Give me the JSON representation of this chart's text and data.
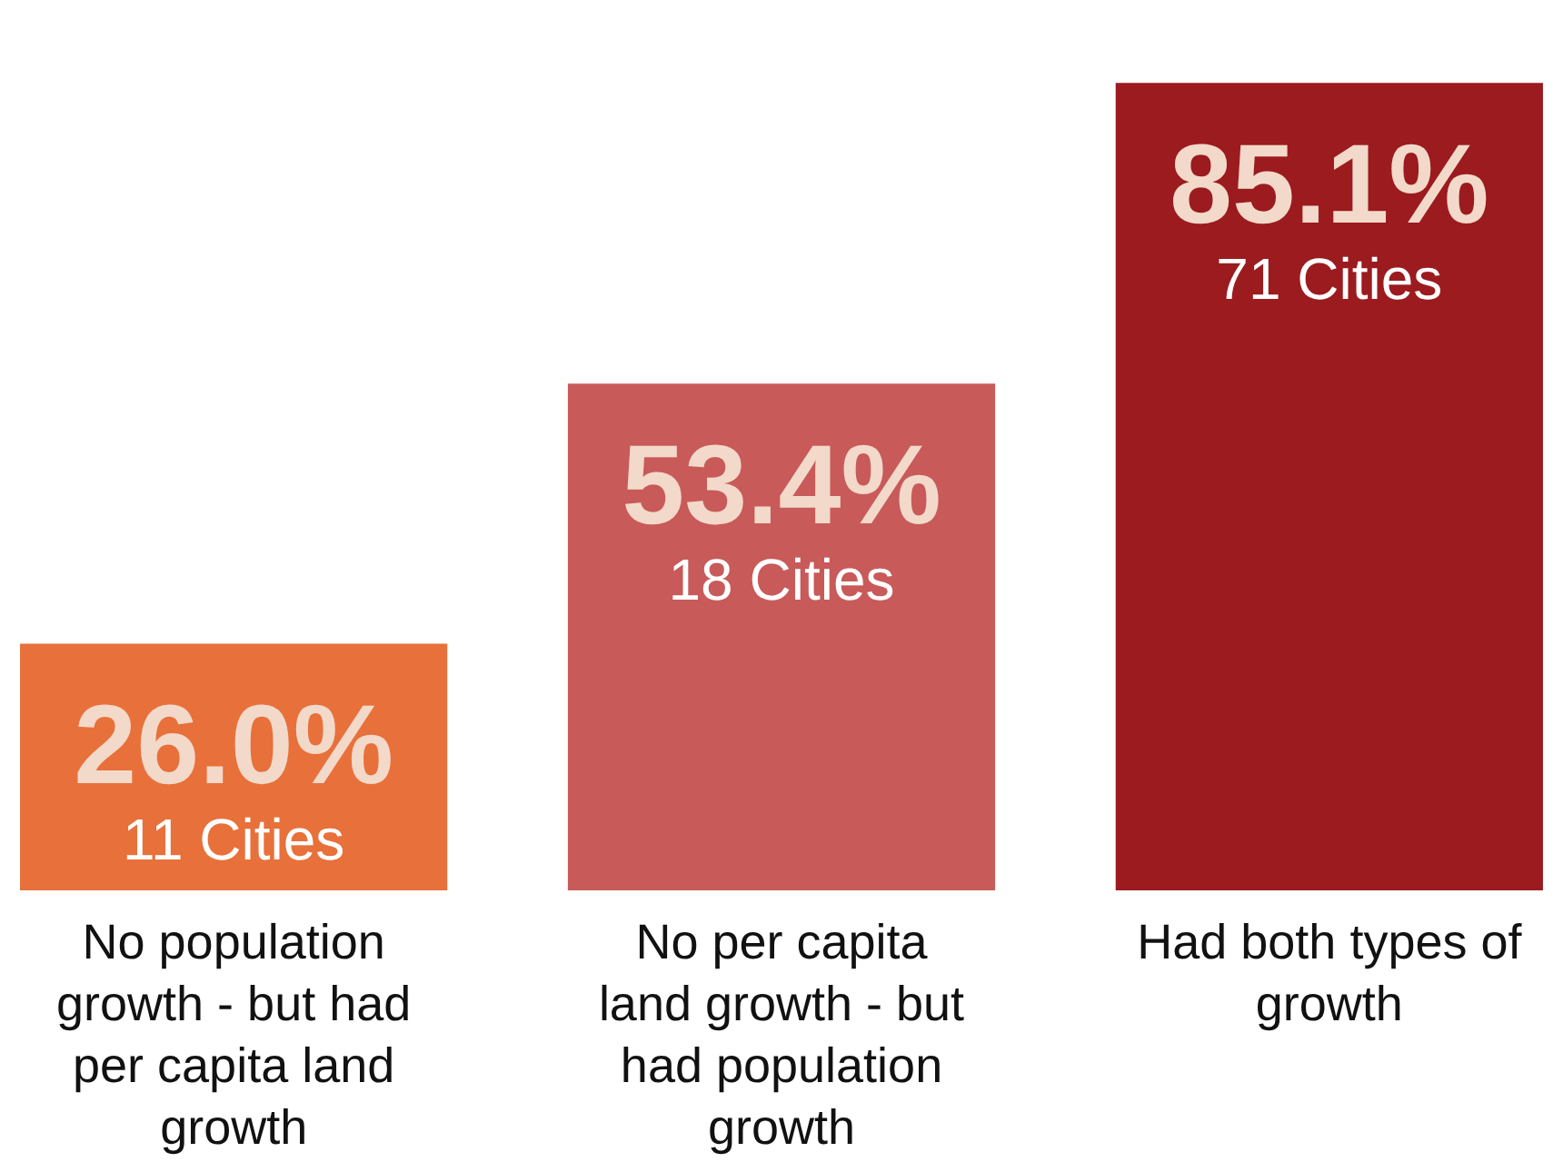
{
  "chart_data": {
    "type": "bar",
    "categories": [
      "No population growth - but had per capita land growth",
      "No per capita land growth - but had population growth",
      "Had both types of growth"
    ],
    "values": [
      26.0,
      53.4,
      85.1
    ],
    "colors": [
      "#e8703a",
      "#c85a5a",
      "#9b1b1f"
    ],
    "value_labels": [
      "26.0%",
      "53.4%",
      "85.1%"
    ],
    "annotations": [
      {
        "text": "11 Cities",
        "x": "No population growth - but had per capita land growth",
        "y": 26.0
      },
      {
        "text": "18 Cities",
        "x": "No per capita land growth - but had population growth",
        "y": 53.4
      },
      {
        "text": "71 Cities",
        "x": "Had both types of growth",
        "y": 85.1
      }
    ]
  }
}
